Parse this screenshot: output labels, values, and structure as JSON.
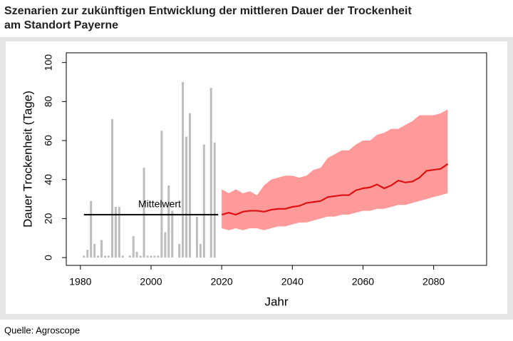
{
  "chart_data": {
    "type": "combo",
    "title": [
      "Szenarien zur zukünftigen Entwicklung der mittleren Dauer der Trockenheit",
      "am Standort Payerne"
    ],
    "source": "Quelle: Agroscope",
    "x_label": "Jahr",
    "y_label": "Dauer Trockenheit (Tage)",
    "xlim": [
      1976,
      2095
    ],
    "ylim": [
      -4,
      105
    ],
    "xticks": [
      1980,
      2000,
      2020,
      2040,
      2060,
      2080
    ],
    "yticks": [
      0,
      20,
      40,
      60,
      80,
      100
    ],
    "bars": {
      "color": "#bdbdbd",
      "x": [
        1981,
        1982,
        1983,
        1984,
        1985,
        1986,
        1987,
        1988,
        1989,
        1990,
        1991,
        1992,
        1993,
        1994,
        1995,
        1996,
        1997,
        1998,
        1999,
        2000,
        2001,
        2002,
        2003,
        2004,
        2005,
        2006,
        2007,
        2008,
        2009,
        2010,
        2011,
        2012,
        2013,
        2014,
        2015,
        2016,
        2017,
        2018
      ],
      "values": [
        1,
        4,
        29,
        7,
        1,
        9,
        1,
        1,
        71,
        26,
        26,
        1,
        0,
        1,
        11,
        3,
        1,
        46,
        1,
        1,
        1,
        1,
        65,
        13,
        37,
        24,
        0,
        7,
        90,
        62,
        74,
        0,
        21,
        7,
        58,
        0,
        87,
        59
      ]
    },
    "mean_line": {
      "label": "Mittelwert",
      "value": 22,
      "x": [
        1981,
        2019
      ],
      "color": "#000000"
    },
    "projection": {
      "line_color": "#e01010",
      "band_color": "#ff9a9a",
      "x": [
        2020,
        2022,
        2024,
        2026,
        2028,
        2030,
        2032,
        2034,
        2036,
        2038,
        2040,
        2042,
        2044,
        2046,
        2048,
        2050,
        2052,
        2054,
        2056,
        2058,
        2060,
        2062,
        2064,
        2066,
        2068,
        2070,
        2072,
        2074,
        2076,
        2078,
        2080,
        2082,
        2084
      ],
      "mean": [
        22,
        23,
        22,
        23.5,
        24,
        24,
        23.5,
        24.5,
        25,
        25,
        26,
        26.5,
        28,
        28.5,
        29,
        31,
        31.5,
        32,
        32,
        34.5,
        35.5,
        36,
        37.5,
        35.5,
        37,
        39.5,
        38.5,
        39,
        41,
        44.5,
        45,
        45.5,
        48
      ],
      "lower": [
        15,
        14,
        15,
        14,
        15,
        15,
        14,
        15,
        16,
        16,
        17,
        18,
        18,
        19,
        20,
        21,
        21,
        22,
        22,
        23,
        24,
        24,
        25,
        25,
        26,
        27,
        27,
        28,
        29,
        30,
        31,
        32,
        33
      ],
      "upper": [
        35,
        33,
        35,
        33,
        34,
        32,
        37,
        40,
        41,
        42,
        42,
        41,
        42,
        45,
        46,
        51,
        53,
        55,
        55,
        58,
        60,
        60,
        63,
        64,
        66,
        66,
        68,
        70,
        73,
        73,
        73,
        74,
        76
      ]
    }
  }
}
